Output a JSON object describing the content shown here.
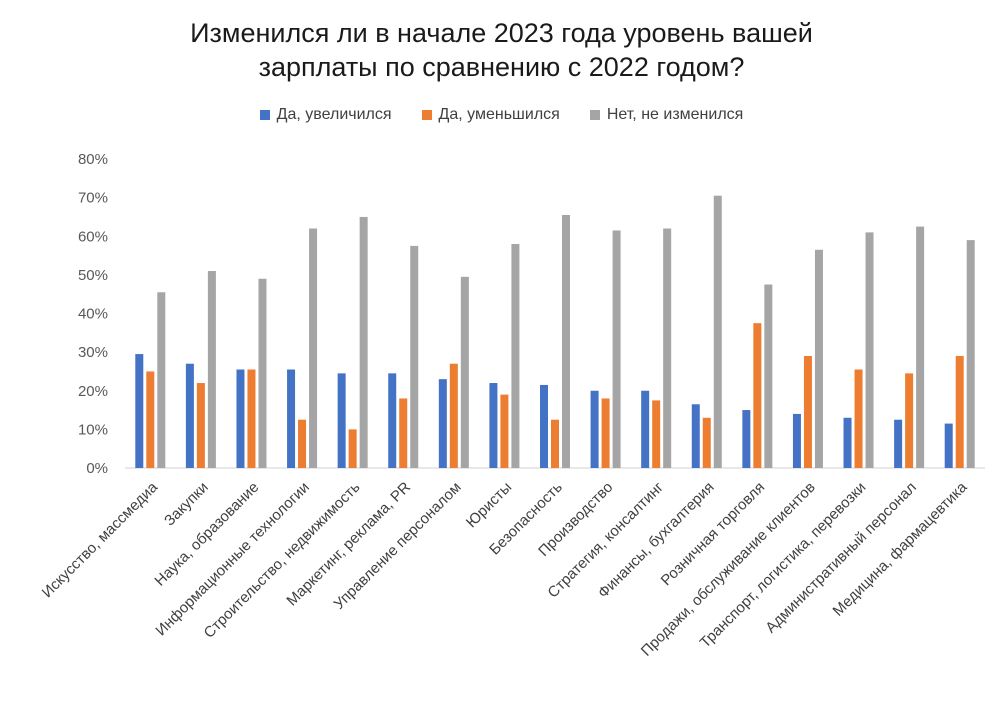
{
  "chart_data": {
    "type": "bar",
    "title_lines": [
      "Изменился ли в начале 2023 года уровень вашей",
      "зарплаты по сравнению с 2022 годом?"
    ],
    "categories": [
      "Искусство, массмедиа",
      "Закупки",
      "Наука, образование",
      "Информационные технологии",
      "Строительство, недвижимость",
      "Маркетинг, реклама, PR",
      "Управление персоналом",
      "Юристы",
      "Безопасность",
      "Производство",
      "Стратегия, консалтинг",
      "Финансы, бухгалтерия",
      "Розничная торговля",
      "Продажи, обслуживание клиентов",
      "Транспорт, логистика, перевозки",
      "Административный персонал",
      "Медицина, фармацевтика"
    ],
    "series": [
      {
        "name": "Да, увеличился",
        "color": "#4472C4",
        "values": [
          29.5,
          27,
          25.5,
          25.5,
          24.5,
          24.5,
          23,
          22,
          21.5,
          20,
          20,
          16.5,
          15,
          14,
          13,
          12.5,
          11.5
        ]
      },
      {
        "name": "Да, уменьшился",
        "color": "#ED7D31",
        "values": [
          25,
          22,
          25.5,
          12.5,
          10,
          18,
          27,
          19,
          12.5,
          18,
          17.5,
          13,
          37.5,
          29,
          25.5,
          24.5,
          29
        ]
      },
      {
        "name": "Нет, не изменился",
        "color": "#A5A5A5",
        "values": [
          45.5,
          51,
          49,
          62,
          65,
          57.5,
          49.5,
          58,
          65.5,
          61.5,
          62,
          70.5,
          47.5,
          56.5,
          61,
          62.5,
          59
        ]
      }
    ],
    "ylim": [
      0,
      80
    ],
    "yticks": [
      "0%",
      "10%",
      "20%",
      "30%",
      "40%",
      "50%",
      "60%",
      "70%",
      "80%"
    ],
    "gridlines": false,
    "legend_position": "top"
  }
}
